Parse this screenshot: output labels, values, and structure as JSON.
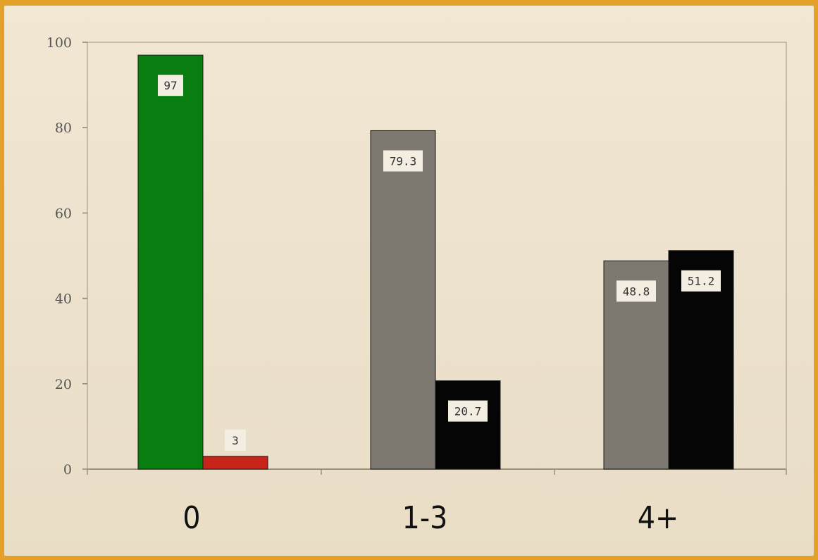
{
  "chart_data": {
    "type": "bar",
    "title": "",
    "xlabel": "",
    "ylabel": "",
    "categories": [
      "0",
      "1-3",
      "4+"
    ],
    "ylim": [
      0,
      100
    ],
    "yticks": [
      0,
      20,
      40,
      60,
      80,
      100
    ],
    "grid": false,
    "legend": "none",
    "bars": [
      {
        "category": "0",
        "slot": 0,
        "value": 97,
        "label": "97",
        "color": "#0a7d10"
      },
      {
        "category": "0",
        "slot": 1,
        "value": 3,
        "label": "3",
        "color": "#c8241a"
      },
      {
        "category": "1-3",
        "slot": 0,
        "value": 79.3,
        "label": "79.3",
        "color": "#7d7870"
      },
      {
        "category": "1-3",
        "slot": 1,
        "value": 20.7,
        "label": "20.7",
        "color": "#050505"
      },
      {
        "category": "4+",
        "slot": 0,
        "value": 48.8,
        "label": "48.8",
        "color": "#7d7870"
      },
      {
        "category": "4+",
        "slot": 1,
        "value": 51.2,
        "label": "51.2",
        "color": "#050505"
      }
    ]
  }
}
